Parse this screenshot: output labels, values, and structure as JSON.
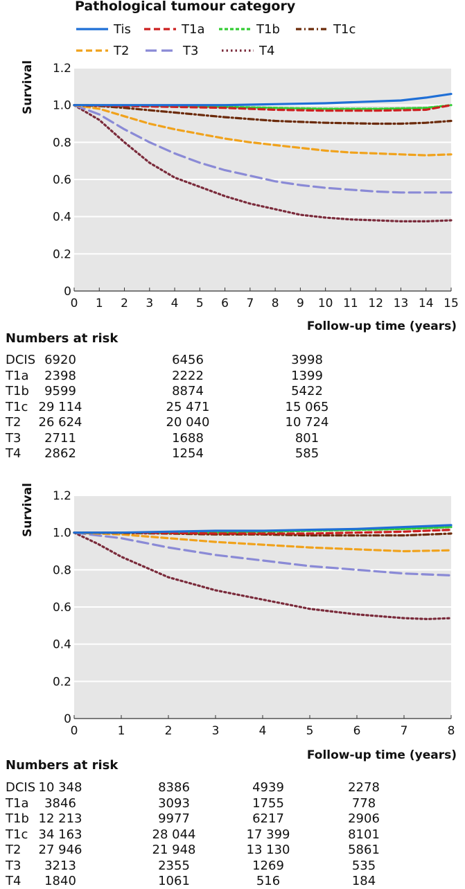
{
  "legend": {
    "title": "Pathological tumour category",
    "items": [
      {
        "label": "Tis",
        "color": "#1f6fd6",
        "dash": "solid"
      },
      {
        "label": "T1a",
        "color": "#cc1f1f",
        "dash": "dash"
      },
      {
        "label": "T1b",
        "color": "#33cc33",
        "dash": "shortdash"
      },
      {
        "label": "T1c",
        "color": "#6b2a0a",
        "dash": "dashdot"
      },
      {
        "label": "T2",
        "color": "#f0a21c",
        "dash": "dash"
      },
      {
        "label": "T3",
        "color": "#8a8ad6",
        "dash": "longdash"
      },
      {
        "label": "T4",
        "color": "#7a2a3a",
        "dash": "dot"
      }
    ]
  },
  "chart_data": [
    {
      "type": "line",
      "ylabel": "Survival",
      "xlabel": "Follow-up time (years)",
      "xlim": [
        0,
        15
      ],
      "ylim": [
        0,
        1.2
      ],
      "xticks": [
        "0",
        "1",
        "2",
        "3",
        "4",
        "5",
        "6",
        "7",
        "8",
        "9",
        "10",
        "11",
        "12",
        "13",
        "14",
        "15"
      ],
      "yticks": [
        "0",
        "0.2",
        "0.4",
        "0.6",
        "0.8",
        "1.0",
        "1.2"
      ],
      "grid": true,
      "series": [
        {
          "name": "Tis",
          "x": [
            0,
            2,
            4,
            6,
            8,
            10,
            12,
            13,
            14,
            15
          ],
          "y": [
            1.0,
            1.0,
            1.0,
            1.0,
            1.005,
            1.01,
            1.02,
            1.025,
            1.04,
            1.06
          ]
        },
        {
          "name": "T1a",
          "x": [
            0,
            2,
            4,
            6,
            8,
            10,
            12,
            14,
            15
          ],
          "y": [
            1.0,
            0.995,
            0.99,
            0.985,
            0.975,
            0.97,
            0.97,
            0.975,
            1.0
          ]
        },
        {
          "name": "T1b",
          "x": [
            0,
            2,
            4,
            6,
            8,
            10,
            12,
            14,
            15
          ],
          "y": [
            1.0,
            0.998,
            0.995,
            0.99,
            0.985,
            0.98,
            0.98,
            0.985,
            1.0
          ]
        },
        {
          "name": "T1c",
          "x": [
            0,
            1,
            2,
            4,
            6,
            8,
            10,
            12,
            13,
            14,
            15
          ],
          "y": [
            1.0,
            0.995,
            0.985,
            0.96,
            0.935,
            0.915,
            0.905,
            0.9,
            0.9,
            0.905,
            0.915
          ]
        },
        {
          "name": "T2",
          "x": [
            0,
            1,
            2,
            3,
            4,
            5,
            6,
            7,
            8,
            9,
            10,
            11,
            12,
            13,
            14,
            15
          ],
          "y": [
            1.0,
            0.98,
            0.94,
            0.9,
            0.87,
            0.845,
            0.82,
            0.8,
            0.785,
            0.77,
            0.755,
            0.745,
            0.74,
            0.735,
            0.73,
            0.735
          ]
        },
        {
          "name": "T3",
          "x": [
            0,
            1,
            2,
            3,
            4,
            5,
            6,
            7,
            8,
            9,
            10,
            11,
            12,
            13,
            14,
            15
          ],
          "y": [
            1.0,
            0.95,
            0.87,
            0.8,
            0.74,
            0.69,
            0.65,
            0.62,
            0.59,
            0.57,
            0.555,
            0.545,
            0.535,
            0.53,
            0.53,
            0.53
          ]
        },
        {
          "name": "T4",
          "x": [
            0,
            1,
            2,
            3,
            4,
            5,
            6,
            7,
            8,
            9,
            10,
            11,
            12,
            13,
            14,
            15
          ],
          "y": [
            1.0,
            0.92,
            0.8,
            0.69,
            0.61,
            0.56,
            0.51,
            0.47,
            0.44,
            0.41,
            0.395,
            0.385,
            0.38,
            0.375,
            0.375,
            0.38
          ]
        }
      ]
    },
    {
      "type": "line",
      "ylabel": "Survival",
      "xlabel": "Follow-up time (years)",
      "xlim": [
        0,
        8
      ],
      "ylim": [
        0,
        1.2
      ],
      "xticks": [
        "0",
        "1",
        "2",
        "3",
        "4",
        "5",
        "6",
        "7",
        "8"
      ],
      "yticks": [
        "0",
        "0.2",
        "0.4",
        "0.6",
        "0.8",
        "1.0",
        "1.2"
      ],
      "grid": true,
      "series": [
        {
          "name": "Tis",
          "x": [
            0,
            1,
            2,
            3,
            4,
            5,
            6,
            7,
            8
          ],
          "y": [
            1.0,
            1.0,
            1.005,
            1.01,
            1.01,
            1.015,
            1.02,
            1.03,
            1.04
          ]
        },
        {
          "name": "T1a",
          "x": [
            0,
            1,
            2,
            3,
            4,
            5,
            6,
            7,
            8
          ],
          "y": [
            1.0,
            1.0,
            0.998,
            0.995,
            0.995,
            0.995,
            1.0,
            1.005,
            1.015
          ]
        },
        {
          "name": "T1b",
          "x": [
            0,
            1,
            2,
            3,
            4,
            5,
            6,
            7,
            8
          ],
          "y": [
            1.0,
            1.0,
            1.0,
            1.0,
            1.005,
            1.01,
            1.015,
            1.02,
            1.03
          ]
        },
        {
          "name": "T1c",
          "x": [
            0,
            1,
            2,
            3,
            4,
            5,
            6,
            7,
            8
          ],
          "y": [
            1.0,
            0.998,
            0.995,
            0.99,
            0.99,
            0.985,
            0.985,
            0.985,
            0.995
          ]
        },
        {
          "name": "T2",
          "x": [
            0,
            1,
            2,
            3,
            4,
            5,
            6,
            7,
            8
          ],
          "y": [
            1.0,
            0.99,
            0.97,
            0.95,
            0.935,
            0.92,
            0.91,
            0.9,
            0.905
          ]
        },
        {
          "name": "T3",
          "x": [
            0,
            1,
            2,
            3,
            4,
            5,
            6,
            7,
            8
          ],
          "y": [
            1.0,
            0.97,
            0.92,
            0.88,
            0.85,
            0.82,
            0.8,
            0.78,
            0.77
          ]
        },
        {
          "name": "T4",
          "x": [
            0,
            0.5,
            1,
            2,
            3,
            4,
            5,
            6,
            7,
            7.5,
            8
          ],
          "y": [
            1.0,
            0.94,
            0.87,
            0.76,
            0.69,
            0.64,
            0.59,
            0.56,
            0.54,
            0.535,
            0.54
          ]
        }
      ]
    }
  ],
  "risk_tables": [
    {
      "title": "Numbers at risk",
      "rows": [
        {
          "label": "DCIS",
          "values": [
            "6920",
            "6456",
            "3998"
          ]
        },
        {
          "label": "T1a",
          "values": [
            "2398",
            "2222",
            "1399"
          ]
        },
        {
          "label": "T1b",
          "values": [
            "9599",
            "8874",
            "5422"
          ]
        },
        {
          "label": "T1c",
          "values": [
            "29 114",
            "25 471",
            "15 065"
          ]
        },
        {
          "label": "T2",
          "values": [
            "26 624",
            "20 040",
            "10 724"
          ]
        },
        {
          "label": "T3",
          "values": [
            "2711",
            "1688",
            "801"
          ]
        },
        {
          "label": "T4",
          "values": [
            "2862",
            "1254",
            "585"
          ]
        }
      ]
    },
    {
      "title": "Numbers at risk",
      "rows": [
        {
          "label": "DCIS",
          "values": [
            "10 348",
            "8386",
            "4939",
            "2278"
          ]
        },
        {
          "label": "T1a",
          "values": [
            "3846",
            "3093",
            "1755",
            "778"
          ]
        },
        {
          "label": "T1b",
          "values": [
            "12 213",
            "9977",
            "6217",
            "2906"
          ]
        },
        {
          "label": "T1c",
          "values": [
            "34 163",
            "28 044",
            "17 399",
            "8101"
          ]
        },
        {
          "label": "T2",
          "values": [
            "27 946",
            "21 948",
            "13 130",
            "5861"
          ]
        },
        {
          "label": "T3",
          "values": [
            "3213",
            "2355",
            "1269",
            "535"
          ]
        },
        {
          "label": "T4",
          "values": [
            "1840",
            "1061",
            "516",
            "184"
          ]
        }
      ]
    }
  ]
}
